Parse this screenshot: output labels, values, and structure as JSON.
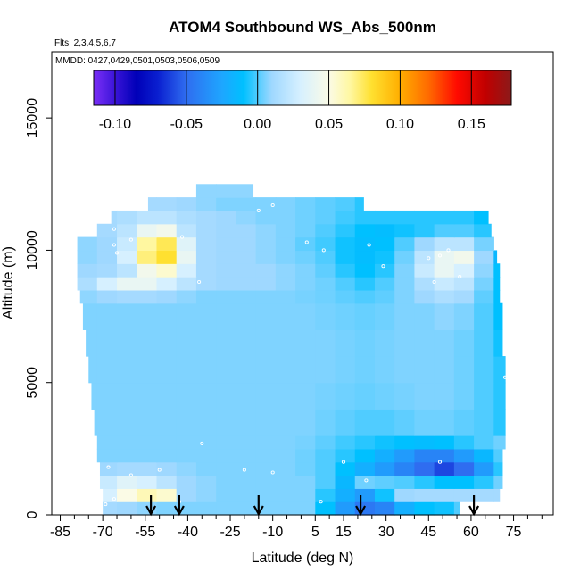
{
  "chart_data": {
    "type": "heatmap",
    "title": "ATOM4 Southbound WS_Abs_500nm",
    "subtitle_flights": "Flts: 2,3,4,5,6,7",
    "subtitle_dates": "MMDD: 0427,0429,0501,0503,0506,0509",
    "xlabel": "Latitude (deg N)",
    "ylabel": "Altitude (m)",
    "xlim": [
      -88,
      89
    ],
    "ylim": [
      0,
      17500
    ],
    "x_ticks": [
      -85,
      -70,
      -55,
      -40,
      -25,
      -10,
      5,
      15,
      30,
      45,
      60,
      75
    ],
    "y_ticks": [
      0,
      5000,
      10000,
      15000
    ],
    "colorbar": {
      "range": [
        -0.115,
        0.178
      ],
      "ticks": [
        "-0.10",
        "-0.05",
        "0.00",
        "0.05",
        "0.10",
        "0.15"
      ],
      "tick_values": [
        -0.1,
        -0.05,
        0.0,
        0.05,
        0.1,
        0.15
      ],
      "stops": [
        {
          "v": -0.115,
          "c": "#7b2ff7"
        },
        {
          "v": -0.1,
          "c": "#3a14d8"
        },
        {
          "v": -0.085,
          "c": "#0000b8"
        },
        {
          "v": -0.07,
          "c": "#0a1fd0"
        },
        {
          "v": -0.05,
          "c": "#2f6df0"
        },
        {
          "v": -0.025,
          "c": "#1ea6ff"
        },
        {
          "v": -0.01,
          "c": "#00c0ff"
        },
        {
          "v": 0.01,
          "c": "#9fd8ff"
        },
        {
          "v": 0.03,
          "c": "#d6f0ff"
        },
        {
          "v": 0.05,
          "c": "#fbfbe6"
        },
        {
          "v": 0.065,
          "c": "#fff7a0"
        },
        {
          "v": 0.08,
          "c": "#ffe030"
        },
        {
          "v": 0.1,
          "c": "#ffae00"
        },
        {
          "v": 0.12,
          "c": "#ff6a00"
        },
        {
          "v": 0.14,
          "c": "#ff0a00"
        },
        {
          "v": 0.16,
          "c": "#c00000"
        },
        {
          "v": 0.178,
          "c": "#8b1a1a"
        }
      ]
    },
    "profile_arrow_latitudes": [
      -53,
      -43,
      -15,
      21,
      61
    ],
    "field": {
      "lat_edges": [
        -79,
        -72,
        -65,
        -58,
        -51,
        -44,
        -37,
        -30,
        -23,
        -16,
        -9,
        -2,
        5,
        12,
        19,
        26,
        33,
        40,
        47,
        54,
        61,
        68,
        73
      ],
      "alt_edges": [
        0,
        500,
        1000,
        1500,
        2000,
        2500,
        3000,
        4000,
        5000,
        6000,
        7000,
        8000,
        8500,
        9000,
        9500,
        10000,
        10500,
        11000,
        11500,
        12000,
        12500
      ],
      "values": [
        [
          0.008,
          0.012,
          0.01,
          0.008,
          0.006,
          0.006,
          0.006,
          0.006,
          0.006,
          0.006,
          0.006,
          0.006,
          -0.01,
          -0.03,
          -0.045,
          -0.04,
          -0.02,
          -0.01,
          -0.008,
          0.0,
          0.0,
          0.0
        ],
        [
          0.01,
          0.03,
          0.05,
          0.06,
          0.055,
          0.01,
          0.008,
          0.006,
          0.006,
          0.006,
          0.006,
          0.006,
          -0.005,
          -0.02,
          -0.03,
          -0.008,
          0.01,
          0.012,
          0.012,
          0.012,
          0.012,
          0.012
        ],
        [
          0.01,
          0.025,
          0.035,
          0.03,
          0.02,
          0.01,
          0.008,
          0.006,
          0.006,
          0.006,
          0.006,
          0.006,
          0.0,
          -0.015,
          0.004,
          0.002,
          0.0,
          -0.005,
          -0.01,
          -0.01,
          -0.005,
          0.004
        ],
        [
          0.008,
          0.01,
          0.012,
          0.012,
          0.01,
          0.008,
          0.006,
          0.006,
          0.006,
          0.006,
          0.006,
          0.004,
          0.0,
          -0.01,
          -0.02,
          -0.03,
          -0.04,
          -0.05,
          -0.06,
          -0.05,
          -0.03,
          -0.005
        ],
        [
          0.006,
          0.006,
          0.006,
          0.006,
          0.006,
          0.006,
          0.006,
          0.006,
          0.006,
          0.006,
          0.006,
          0.004,
          0.0,
          -0.005,
          -0.01,
          -0.02,
          -0.03,
          -0.04,
          -0.04,
          -0.03,
          -0.015,
          0.0
        ],
        [
          0.006,
          0.006,
          0.006,
          0.006,
          0.006,
          0.006,
          0.006,
          0.006,
          0.006,
          0.006,
          0.006,
          0.005,
          0.002,
          -0.002,
          -0.005,
          -0.008,
          -0.01,
          -0.012,
          -0.01,
          -0.005,
          0.0,
          0.004
        ],
        [
          0.006,
          0.006,
          0.006,
          0.006,
          0.006,
          0.006,
          0.006,
          0.006,
          0.006,
          0.006,
          0.006,
          0.006,
          0.004,
          0.002,
          0.0,
          0.0,
          0.002,
          0.004,
          0.004,
          0.002,
          0.0,
          -0.005
        ],
        [
          0.006,
          0.006,
          0.006,
          0.006,
          0.006,
          0.006,
          0.006,
          0.006,
          0.006,
          0.006,
          0.006,
          0.006,
          0.005,
          0.004,
          0.003,
          0.004,
          0.005,
          0.006,
          0.006,
          0.004,
          0.0,
          -0.005
        ],
        [
          0.006,
          0.006,
          0.006,
          0.006,
          0.006,
          0.006,
          0.006,
          0.006,
          0.006,
          0.006,
          0.006,
          0.006,
          0.006,
          0.005,
          0.004,
          0.005,
          0.006,
          0.006,
          0.006,
          0.004,
          0.0,
          -0.005
        ],
        [
          0.006,
          0.006,
          0.006,
          0.006,
          0.006,
          0.006,
          0.006,
          0.006,
          0.006,
          0.006,
          0.006,
          0.006,
          0.006,
          0.005,
          0.004,
          0.005,
          0.006,
          0.006,
          0.006,
          0.004,
          0.0,
          -0.008
        ],
        [
          0.006,
          0.006,
          0.006,
          0.006,
          0.006,
          0.006,
          0.006,
          0.006,
          0.006,
          0.006,
          0.006,
          0.006,
          0.005,
          0.004,
          0.003,
          0.004,
          0.006,
          0.006,
          0.008,
          0.006,
          0.0,
          -0.01
        ],
        [
          0.008,
          0.01,
          0.012,
          0.012,
          0.01,
          0.008,
          0.006,
          0.006,
          0.006,
          0.006,
          0.006,
          0.005,
          0.004,
          0.002,
          0.0,
          0.002,
          0.006,
          0.01,
          0.015,
          0.012,
          0.002,
          -0.01
        ],
        [
          0.015,
          0.03,
          0.04,
          0.04,
          0.03,
          0.02,
          0.012,
          0.01,
          0.01,
          0.01,
          0.008,
          0.006,
          0.004,
          0.0,
          -0.005,
          0.0,
          0.006,
          0.015,
          0.025,
          0.02,
          0.005,
          -0.01
        ],
        [
          0.01,
          0.012,
          0.02,
          0.045,
          0.055,
          0.03,
          0.012,
          0.01,
          0.01,
          0.01,
          0.008,
          0.006,
          0.002,
          -0.005,
          -0.01,
          -0.005,
          0.006,
          0.025,
          0.04,
          0.03,
          0.008,
          -0.01
        ],
        [
          0.008,
          0.01,
          0.03,
          0.07,
          0.08,
          0.04,
          0.012,
          0.01,
          0.01,
          0.008,
          0.006,
          0.004,
          0.0,
          -0.008,
          -0.012,
          -0.008,
          0.004,
          0.02,
          0.04,
          0.045,
          0.01,
          -0.015
        ],
        [
          0.008,
          0.01,
          0.025,
          0.065,
          0.075,
          0.035,
          0.012,
          0.01,
          0.01,
          0.008,
          0.006,
          0.002,
          -0.002,
          -0.008,
          -0.012,
          -0.01,
          0.0,
          0.01,
          0.02,
          0.02,
          0.005,
          -0.015
        ],
        [
          0.01,
          0.012,
          0.02,
          0.04,
          0.045,
          0.02,
          0.012,
          0.01,
          0.01,
          0.008,
          0.006,
          0.004,
          0.0,
          -0.005,
          -0.01,
          -0.012,
          -0.008,
          -0.005,
          0.0,
          0.0,
          -0.005,
          -0.015
        ],
        [
          0.01,
          0.012,
          0.015,
          0.02,
          0.02,
          0.015,
          0.012,
          0.01,
          0.008,
          0.006,
          0.006,
          0.004,
          0.002,
          -0.002,
          -0.005,
          -0.005,
          -0.005,
          -0.005,
          -0.005,
          -0.005,
          -0.01,
          -0.01
        ],
        [
          0.01,
          0.01,
          0.01,
          0.012,
          0.012,
          0.01,
          0.008,
          0.006,
          0.006,
          0.006,
          0.006,
          0.004,
          0.002,
          0.0,
          -0.005,
          -0.008,
          -0.005,
          0.0,
          0.0,
          0.0,
          0.0,
          0.0
        ],
        [
          0.008,
          0.008,
          0.008,
          0.008,
          0.008,
          0.008,
          0.008,
          0.008,
          0.008,
          0.008,
          0.008,
          0.008,
          0.006,
          0.004,
          0.002,
          0.0,
          0.0,
          0.0,
          0.0,
          0.0,
          0.0,
          0.0
        ]
      ],
      "row_lat_ranges": [
        [
          -70,
          56
        ],
        [
          -70,
          70
        ],
        [
          -71,
          71
        ],
        [
          -71,
          71
        ],
        [
          -72,
          71
        ],
        [
          -72,
          72
        ],
        [
          -73,
          72
        ],
        [
          -74,
          72
        ],
        [
          -75,
          72
        ],
        [
          -76,
          71
        ],
        [
          -77,
          71
        ],
        [
          -78,
          70
        ],
        [
          -79,
          70
        ],
        [
          -80,
          70
        ],
        [
          -80,
          69
        ],
        [
          -80,
          68
        ],
        [
          -72,
          67
        ],
        [
          -67,
          66
        ],
        [
          -54,
          22
        ],
        [
          -37,
          -17
        ]
      ]
    },
    "sample_points": [
      [
        -69,
        400
      ],
      [
        -66,
        600
      ],
      [
        -43,
        500
      ],
      [
        -60,
        1500
      ],
      [
        -50,
        1700
      ],
      [
        -35,
        2700
      ],
      [
        -20,
        1700
      ],
      [
        -10,
        1600
      ],
      [
        7,
        500
      ],
      [
        15,
        2000
      ],
      [
        23,
        1300
      ],
      [
        49,
        2000
      ],
      [
        -68,
        1800
      ],
      [
        -65,
        9900
      ],
      [
        -66,
        10200
      ],
      [
        -60,
        10400
      ],
      [
        -42,
        10500
      ],
      [
        -36,
        8800
      ],
      [
        -15,
        11500
      ],
      [
        -10,
        11700
      ],
      [
        2,
        10300
      ],
      [
        8,
        10000
      ],
      [
        24,
        10200
      ],
      [
        29,
        9400
      ],
      [
        45,
        9700
      ],
      [
        49,
        9800
      ],
      [
        52,
        10000
      ],
      [
        56,
        9000
      ],
      [
        47,
        8800
      ],
      [
        69,
        11400
      ],
      [
        72,
        5200
      ],
      [
        -66,
        10800
      ]
    ]
  }
}
